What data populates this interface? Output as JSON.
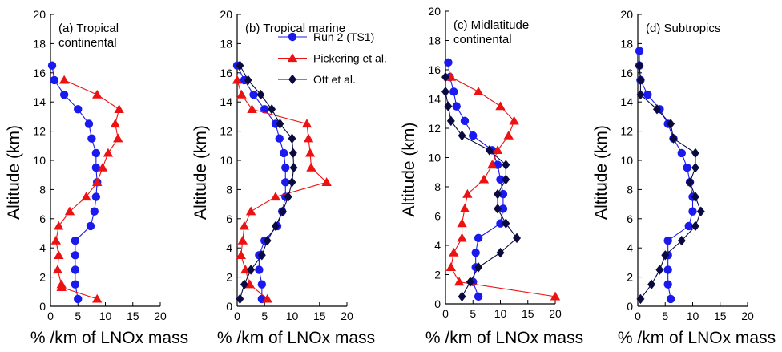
{
  "legend": [
    {
      "name": "Run 2 (TS1)",
      "color": "#1a1aee",
      "marker": "circle"
    },
    {
      "name": "Pickering et al.",
      "color": "#ee1111",
      "marker": "triangle"
    },
    {
      "name": "Ott et al.",
      "color": "#0a0a40",
      "marker": "diamond"
    }
  ],
  "chart_data": [
    {
      "type": "line",
      "title": "(a) Tropical continental",
      "title_lines": [
        "(a) Tropical",
        "continental"
      ],
      "xlabel": "% /km of LNOx mass",
      "ylabel": "Altitude (km)",
      "xlim": [
        0,
        20
      ],
      "ylim": [
        0,
        20
      ],
      "xticks": [
        0,
        5,
        10,
        15,
        20
      ],
      "yticks": [
        0,
        2,
        4,
        6,
        8,
        10,
        12,
        14,
        16,
        18,
        20
      ],
      "series": [
        {
          "name": "Run 2 (TS1)",
          "color": "#1a1aee",
          "marker": "circle",
          "points": [
            [
              0.3,
              16.5
            ],
            [
              0.7,
              15.5
            ],
            [
              2.5,
              14.5
            ],
            [
              5.0,
              13.5
            ],
            [
              7.0,
              12.5
            ],
            [
              7.5,
              11.5
            ],
            [
              8.3,
              10.5
            ],
            [
              8.3,
              9.5
            ],
            [
              8.5,
              8.5
            ],
            [
              8.3,
              7.5
            ],
            [
              8.0,
              6.5
            ],
            [
              7.3,
              5.5
            ],
            [
              4.5,
              4.5
            ],
            [
              4.5,
              3.5
            ],
            [
              4.5,
              2.5
            ],
            [
              4.5,
              1.5
            ],
            [
              5.0,
              0.5
            ]
          ]
        },
        {
          "name": "Pickering et al.",
          "color": "#ee1111",
          "marker": "triangle",
          "points": [
            [
              2.5,
              15.5
            ],
            [
              8.5,
              14.5
            ],
            [
              12.5,
              13.5
            ],
            [
              11.8,
              12.5
            ],
            [
              12.3,
              11.5
            ],
            [
              10.5,
              10.5
            ],
            [
              9.5,
              9.5
            ],
            [
              8.5,
              8.5
            ],
            [
              6.5,
              7.5
            ],
            [
              3.5,
              6.5
            ],
            [
              1.5,
              5.5
            ],
            [
              1.0,
              4.5
            ],
            [
              1.5,
              3.5
            ],
            [
              1.3,
              2.5
            ],
            [
              2.0,
              1.5
            ],
            [
              2.0,
              1.3
            ],
            [
              8.5,
              0.5
            ]
          ]
        }
      ]
    },
    {
      "type": "line",
      "title": "(b) Tropical marine",
      "title_lines": [
        "(b) Tropical marine"
      ],
      "xlabel": "% /km of LNOx mass",
      "ylabel": "Altitude (km)",
      "xlim": [
        0,
        20
      ],
      "ylim": [
        0,
        20
      ],
      "xticks": [
        0,
        5,
        10,
        15,
        20
      ],
      "yticks": [
        0,
        2,
        4,
        6,
        8,
        10,
        12,
        14,
        16,
        18,
        20
      ],
      "series": [
        {
          "name": "Run 2 (TS1)",
          "color": "#1a1aee",
          "marker": "circle",
          "points": [
            [
              0.0,
              16.5
            ],
            [
              1.3,
              15.5
            ],
            [
              3.0,
              14.5
            ],
            [
              5.0,
              13.5
            ],
            [
              7.0,
              12.5
            ],
            [
              7.7,
              11.5
            ],
            [
              8.5,
              10.5
            ],
            [
              8.8,
              9.5
            ],
            [
              8.8,
              8.5
            ],
            [
              8.8,
              7.5
            ],
            [
              8.2,
              6.5
            ],
            [
              7.3,
              5.5
            ],
            [
              5.0,
              4.5
            ],
            [
              4.0,
              3.5
            ],
            [
              4.0,
              2.5
            ],
            [
              4.5,
              1.5
            ],
            [
              4.5,
              0.5
            ]
          ]
        },
        {
          "name": "Pickering et al.",
          "color": "#ee1111",
          "marker": "triangle",
          "points": [
            [
              0.0,
              15.5
            ],
            [
              0.8,
              14.5
            ],
            [
              2.7,
              13.5
            ],
            [
              12.7,
              12.5
            ],
            [
              13.0,
              11.5
            ],
            [
              13.3,
              10.5
            ],
            [
              13.5,
              9.5
            ],
            [
              16.3,
              8.5
            ],
            [
              7.0,
              7.5
            ],
            [
              2.5,
              6.5
            ],
            [
              1.3,
              5.5
            ],
            [
              1.0,
              4.5
            ],
            [
              0.7,
              3.5
            ],
            [
              1.5,
              2.5
            ],
            [
              2.3,
              1.5
            ],
            [
              5.5,
              0.5
            ]
          ]
        },
        {
          "name": "Ott et al.",
          "color": "#0a0a40",
          "marker": "diamond",
          "points": [
            [
              0.5,
              16.5
            ],
            [
              2.0,
              15.5
            ],
            [
              4.3,
              14.5
            ],
            [
              6.3,
              13.5
            ],
            [
              7.8,
              12.5
            ],
            [
              10.0,
              11.5
            ],
            [
              10.2,
              10.5
            ],
            [
              10.3,
              9.5
            ],
            [
              10.0,
              8.5
            ],
            [
              9.3,
              7.5
            ],
            [
              8.3,
              6.5
            ],
            [
              7.0,
              5.5
            ],
            [
              5.5,
              4.5
            ],
            [
              4.5,
              3.5
            ],
            [
              2.5,
              2.5
            ],
            [
              1.3,
              1.5
            ],
            [
              0.5,
              0.5
            ]
          ]
        }
      ]
    },
    {
      "type": "line",
      "title": "(c) Midlatitude continental",
      "title_lines": [
        "(c) Midlatitude",
        "continental"
      ],
      "xlabel": "% /km of LNOx mass",
      "ylabel": "Altitude (km)",
      "xlim": [
        0,
        20
      ],
      "ylim": [
        0,
        20
      ],
      "xticks": [
        0,
        5,
        10,
        15,
        20
      ],
      "yticks": [
        0,
        2,
        4,
        6,
        8,
        10,
        12,
        14,
        16,
        18,
        20
      ],
      "series": [
        {
          "name": "Run 2 (TS1)",
          "color": "#1a1aee",
          "marker": "circle",
          "points": [
            [
              0.5,
              16.5
            ],
            [
              0.8,
              15.5
            ],
            [
              1.5,
              14.5
            ],
            [
              2.0,
              13.5
            ],
            [
              3.5,
              12.5
            ],
            [
              5.0,
              11.5
            ],
            [
              8.5,
              10.5
            ],
            [
              9.5,
              9.5
            ],
            [
              10.0,
              8.5
            ],
            [
              10.5,
              7.5
            ],
            [
              10.5,
              6.5
            ],
            [
              10.0,
              5.5
            ],
            [
              6.0,
              4.5
            ],
            [
              5.5,
              3.5
            ],
            [
              5.5,
              2.5
            ],
            [
              5.0,
              1.5
            ],
            [
              6.0,
              0.5
            ]
          ]
        },
        {
          "name": "Pickering et al.",
          "color": "#ee1111",
          "marker": "triangle",
          "points": [
            [
              1.0,
              15.5
            ],
            [
              6.0,
              14.5
            ],
            [
              10.0,
              13.5
            ],
            [
              12.5,
              12.5
            ],
            [
              11.5,
              11.5
            ],
            [
              9.5,
              10.5
            ],
            [
              8.5,
              9.5
            ],
            [
              7.0,
              8.5
            ],
            [
              4.0,
              7.5
            ],
            [
              3.5,
              6.5
            ],
            [
              3.0,
              5.5
            ],
            [
              3.0,
              4.5
            ],
            [
              1.5,
              3.5
            ],
            [
              1.0,
              2.5
            ],
            [
              2.5,
              1.5
            ],
            [
              20.0,
              0.5
            ]
          ]
        },
        {
          "name": "Ott et al.",
          "color": "#0a0a40",
          "marker": "diamond",
          "points": [
            [
              0.0,
              15.5
            ],
            [
              0.0,
              14.5
            ],
            [
              0.5,
              13.5
            ],
            [
              1.0,
              12.5
            ],
            [
              3.0,
              11.5
            ],
            [
              8.0,
              10.5
            ],
            [
              11.0,
              9.5
            ],
            [
              11.0,
              8.5
            ],
            [
              9.5,
              7.5
            ],
            [
              9.5,
              6.5
            ],
            [
              11.0,
              5.5
            ],
            [
              13.0,
              4.5
            ],
            [
              10.0,
              3.5
            ],
            [
              6.0,
              2.5
            ],
            [
              4.5,
              1.5
            ],
            [
              3.0,
              0.5
            ]
          ]
        }
      ]
    },
    {
      "type": "line",
      "title": "(d) Subtropics",
      "title_lines": [
        "(d) Subtropics"
      ],
      "xlabel": "% /km of LNOx mass",
      "ylabel": "Altitude (km)",
      "xlim": [
        0,
        20
      ],
      "ylim": [
        0,
        20
      ],
      "xticks": [
        0,
        5,
        10,
        15,
        20
      ],
      "yticks": [
        0,
        2,
        4,
        6,
        8,
        10,
        12,
        14,
        16,
        18,
        20
      ],
      "series": [
        {
          "name": "Run 2 (TS1)",
          "color": "#1a1aee",
          "marker": "circle",
          "points": [
            [
              0.3,
              17.5
            ],
            [
              0.3,
              16.5
            ],
            [
              0.5,
              15.5
            ],
            [
              1.8,
              14.5
            ],
            [
              4.0,
              13.5
            ],
            [
              5.5,
              12.5
            ],
            [
              6.5,
              11.5
            ],
            [
              8.0,
              10.5
            ],
            [
              9.0,
              9.5
            ],
            [
              9.5,
              8.5
            ],
            [
              10.0,
              7.5
            ],
            [
              10.0,
              6.5
            ],
            [
              9.3,
              5.5
            ],
            [
              5.5,
              4.5
            ],
            [
              5.5,
              3.5
            ],
            [
              5.5,
              2.5
            ],
            [
              5.5,
              1.5
            ],
            [
              6.0,
              0.5
            ]
          ]
        },
        {
          "name": "Ott et al.",
          "color": "#0a0a40",
          "marker": "diamond",
          "points": [
            [
              0.3,
              16.5
            ],
            [
              0.5,
              15.5
            ],
            [
              0.5,
              14.5
            ],
            [
              3.5,
              13.5
            ],
            [
              6.0,
              12.5
            ],
            [
              6.5,
              11.5
            ],
            [
              10.5,
              10.5
            ],
            [
              10.5,
              9.5
            ],
            [
              9.5,
              8.5
            ],
            [
              10.5,
              7.5
            ],
            [
              11.5,
              6.5
            ],
            [
              10.5,
              5.5
            ],
            [
              8.0,
              4.5
            ],
            [
              5.0,
              3.5
            ],
            [
              4.0,
              2.5
            ],
            [
              2.5,
              1.5
            ],
            [
              0.5,
              0.5
            ]
          ]
        }
      ]
    }
  ]
}
